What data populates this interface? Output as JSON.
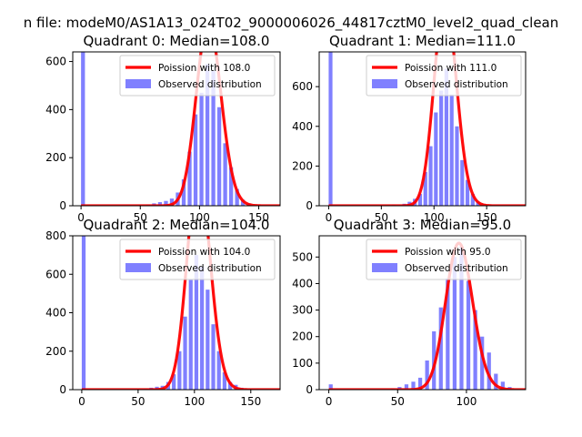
{
  "figure": {
    "suptitle": "n file: modeM0/AS1A13_024T02_9000006026_44817cztM0_level2_quad_clean"
  },
  "colors": {
    "hist": "#8080ff",
    "poisson": "#ff0000"
  },
  "chart_data": [
    {
      "type": "bar",
      "title": "Quadrant 0: Median=108.0",
      "legend": {
        "placement": "top-right",
        "entries": [
          "Poission with 108.0",
          "Observed distribution"
        ]
      },
      "xlim": [
        -7,
        168
      ],
      "ylim": [
        0,
        640
      ],
      "xticks": [
        0,
        50,
        100,
        150
      ],
      "yticks": [
        0,
        200,
        400,
        600
      ],
      "poisson_mean": 108,
      "poisson_scale": 20000,
      "bin_width": 3.3,
      "hist_x": [
        0,
        55,
        60,
        65,
        70,
        75,
        80,
        85,
        90,
        95,
        100,
        105,
        110,
        115,
        120,
        125,
        130,
        135,
        140
      ],
      "hist_y": [
        645,
        5,
        10,
        15,
        20,
        30,
        55,
        110,
        225,
        380,
        470,
        590,
        560,
        410,
        260,
        160,
        70,
        25,
        10
      ]
    },
    {
      "type": "bar",
      "title": "Quadrant 1: Median=111.0",
      "legend": {
        "placement": "top-right",
        "entries": [
          "Poission with 111.0",
          "Observed distribution"
        ]
      },
      "xlim": [
        -9,
        187
      ],
      "ylim": [
        0,
        775
      ],
      "xticks": [
        0,
        50,
        100,
        150
      ],
      "yticks": [
        0,
        200,
        400,
        600
      ],
      "poisson_mean": 111,
      "poisson_scale": 27500,
      "bin_width": 3.6,
      "hist_x": [
        0,
        60,
        70,
        75,
        80,
        85,
        90,
        95,
        100,
        105,
        110,
        115,
        120,
        125,
        130,
        135,
        140,
        145
      ],
      "hist_y": [
        775,
        5,
        10,
        20,
        35,
        60,
        170,
        300,
        470,
        580,
        690,
        560,
        400,
        230,
        130,
        60,
        20,
        8
      ]
    },
    {
      "type": "bar",
      "title": "Quadrant 2: Median=104.0",
      "legend": {
        "placement": "top-right",
        "entries": [
          "Poission with 104.0",
          "Observed distribution"
        ]
      },
      "xlim": [
        -8,
        176
      ],
      "ylim": [
        0,
        800
      ],
      "xticks": [
        0,
        50,
        100,
        150
      ],
      "yticks": [
        0,
        200,
        400,
        600,
        800
      ],
      "poisson_mean": 104,
      "poisson_scale": 29000,
      "bin_width": 3.4,
      "hist_x": [
        0,
        55,
        60,
        65,
        70,
        75,
        80,
        85,
        90,
        95,
        100,
        105,
        110,
        115,
        120,
        125,
        130,
        135,
        140
      ],
      "hist_y": [
        800,
        5,
        10,
        15,
        20,
        40,
        80,
        200,
        380,
        570,
        700,
        640,
        520,
        340,
        200,
        90,
        40,
        25,
        10
      ]
    },
    {
      "type": "bar",
      "title": "Quadrant 3: Median=95.0",
      "legend": {
        "placement": "top-right",
        "entries": [
          "Poission with 95.0",
          "Observed distribution"
        ]
      },
      "xlim": [
        -7,
        143
      ],
      "ylim": [
        0,
        580
      ],
      "xticks": [
        0,
        50,
        100
      ],
      "yticks": [
        0,
        100,
        200,
        300,
        400,
        500
      ],
      "poisson_mean": 95,
      "poisson_scale": 13500,
      "bin_width": 2.8,
      "hist_x": [
        0,
        45,
        50,
        55,
        60,
        65,
        70,
        75,
        80,
        85,
        90,
        95,
        100,
        105,
        110,
        115,
        120,
        125,
        130
      ],
      "hist_y": [
        20,
        5,
        10,
        20,
        30,
        45,
        110,
        220,
        310,
        420,
        500,
        540,
        410,
        300,
        200,
        140,
        60,
        30,
        10
      ]
    }
  ]
}
